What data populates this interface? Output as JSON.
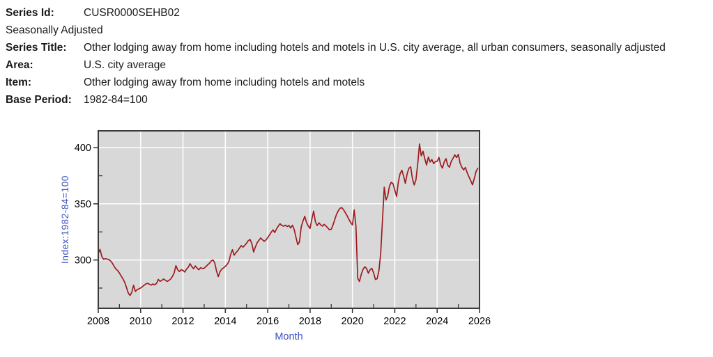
{
  "header": {
    "rows": [
      {
        "label": "Series Id:",
        "value": "CUSR0000SEHB02"
      },
      {
        "label": "Seasonally Adjusted",
        "value": ""
      },
      {
        "label": "Series Title:",
        "value": "Other lodging away from home including hotels and motels in U.S. city average, all urban consumers, seasonally adjusted"
      },
      {
        "label": "Area:",
        "value": "U.S. city average"
      },
      {
        "label": "Item:",
        "value": "Other lodging away from home including hotels and motels"
      },
      {
        "label": "Base Period:",
        "value": "1982-84=100"
      }
    ]
  },
  "chart_data": {
    "type": "line",
    "title": "",
    "xlabel": "Month",
    "ylabel": "Index:1982-84=100",
    "series_name": "CUSR0000SEHB02",
    "frequency": "monthly",
    "start": "2008-01",
    "end": "2025-12",
    "xlim": [
      2008,
      2026
    ],
    "ylim": [
      257,
      415
    ],
    "x_ticks": [
      2008,
      2010,
      2012,
      2014,
      2016,
      2018,
      2020,
      2022,
      2024,
      2026
    ],
    "x_minor_ticks": [
      2009,
      2011,
      2013,
      2015,
      2017,
      2019,
      2021,
      2023,
      2025
    ],
    "y_ticks": [
      300,
      350,
      400
    ],
    "y_minor_ticks": [
      275,
      325,
      375
    ],
    "grid": true,
    "legend": "none",
    "line_color": "#9e1b1e",
    "plot_bg": "#d8d8d8",
    "grid_color": "#ffffff",
    "frame_color": "#3a3a3a",
    "axis_title_color": "#3d55c0",
    "tick_label_color": "#000000",
    "values": [
      305.8,
      309.4,
      303.2,
      300.6,
      301.1,
      300.8,
      300.3,
      299.2,
      297.0,
      294.3,
      292.0,
      290.5,
      288.3,
      285.7,
      283.1,
      280.0,
      275.4,
      270.6,
      268.4,
      271.2,
      277.5,
      272.0,
      273.6,
      274.3,
      275.1,
      276.3,
      277.6,
      278.7,
      279.3,
      278.4,
      277.7,
      278.7,
      277.8,
      279.2,
      282.7,
      281.0,
      281.8,
      283.1,
      282.0,
      280.9,
      281.7,
      283.0,
      285.4,
      288.6,
      294.9,
      291.2,
      289.7,
      291.3,
      290.7,
      289.3,
      291.9,
      293.6,
      296.7,
      294.1,
      292.2,
      294.7,
      292.8,
      291.3,
      293.1,
      292.4,
      292.7,
      294.2,
      295.7,
      297.1,
      299.2,
      300.0,
      297.4,
      290.1,
      285.2,
      289.7,
      291.9,
      293.0,
      294.3,
      296.1,
      298.6,
      304.9,
      309.2,
      304.3,
      306.5,
      308.3,
      310.6,
      312.8,
      311.4,
      313.1,
      314.9,
      317.3,
      318.2,
      314.7,
      307.1,
      311.6,
      315.3,
      317.4,
      319.6,
      318.1,
      316.6,
      317.9,
      319.8,
      322.3,
      324.7,
      326.8,
      324.5,
      327.7,
      330.2,
      332.3,
      330.7,
      330.1,
      331.0,
      329.8,
      330.8,
      328.5,
      331.0,
      327.2,
      320.3,
      313.7,
      316.2,
      329.5,
      334.8,
      338.9,
      333.4,
      330.2,
      328.1,
      336.4,
      343.5,
      334.2,
      330.6,
      333.1,
      331.3,
      330.2,
      331.7,
      330.3,
      328.6,
      326.9,
      327.4,
      331.2,
      336.0,
      340.8,
      343.9,
      346.1,
      346.6,
      344.7,
      342.1,
      339.3,
      336.2,
      333.4,
      331.2,
      344.6,
      330.1,
      283.6,
      280.9,
      287.2,
      291.7,
      293.9,
      292.5,
      288.2,
      291.3,
      292.6,
      288.4,
      282.7,
      283.3,
      290.6,
      305.8,
      334.4,
      364.8,
      353.5,
      357.1,
      365.7,
      369.2,
      367.9,
      362.4,
      356.6,
      369.3,
      376.8,
      379.9,
      374.6,
      368.2,
      376.9,
      381.6,
      382.9,
      372.3,
      366.8,
      371.4,
      385.8,
      403.3,
      392.7,
      396.8,
      390.1,
      384.6,
      391.7,
      387.2,
      389.5,
      385.9,
      387.6,
      387.9,
      391.3,
      384.7,
      381.8,
      387.3,
      390.2,
      384.4,
      382.6,
      387.8,
      390.5,
      393.6,
      391.2,
      394.0,
      386.3,
      382.5,
      380.2,
      382.4,
      377.7,
      374.1,
      370.8,
      366.9,
      372.3,
      378.5,
      381.7
    ]
  }
}
